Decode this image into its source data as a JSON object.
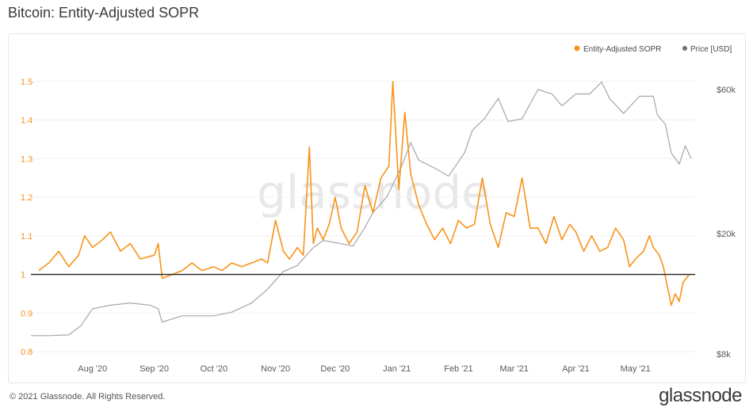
{
  "page": {
    "title": "Bitcoin: Entity-Adjusted SOPR",
    "copyright": "© 2021 Glassnode. All Rights Reserved.",
    "logo": "glassnode",
    "watermark": "glassnode"
  },
  "chart_data": {
    "type": "line",
    "title": "Bitcoin: Entity-Adjusted SOPR",
    "xlabel": "",
    "ylabel": "",
    "x_tick_labels": [
      "Aug '20",
      "Sep '20",
      "Oct '20",
      "Nov '20",
      "Dec '20",
      "Jan '21",
      "Feb '21",
      "Mar '21",
      "Apr '21",
      "May '21"
    ],
    "y_left": {
      "ticks": [
        "0.8",
        "0.9",
        "1",
        "1.1",
        "1.2",
        "1.3",
        "1.4",
        "1.5"
      ],
      "range": [
        0.79,
        1.52
      ]
    },
    "y_right": {
      "ticks": [
        "$8k",
        "$20k",
        "$60k"
      ],
      "scale": "log",
      "range": [
        8000,
        60000
      ]
    },
    "reference_line": {
      "y": 1.0,
      "color": "#222222"
    },
    "legend": {
      "position": "top-right"
    },
    "colors": {
      "sopr": "#f7931a",
      "price": "#a6a6a6"
    },
    "series": [
      {
        "name": "Entity-Adjusted SOPR",
        "axis": "left",
        "points": [
          [
            "2020-07-05",
            1.01
          ],
          [
            "2020-07-10",
            1.03
          ],
          [
            "2020-07-15",
            1.06
          ],
          [
            "2020-07-20",
            1.02
          ],
          [
            "2020-07-25",
            1.05
          ],
          [
            "2020-07-28",
            1.1
          ],
          [
            "2020-08-01",
            1.07
          ],
          [
            "2020-08-06",
            1.09
          ],
          [
            "2020-08-10",
            1.11
          ],
          [
            "2020-08-15",
            1.06
          ],
          [
            "2020-08-20",
            1.08
          ],
          [
            "2020-08-25",
            1.04
          ],
          [
            "2020-09-01",
            1.05
          ],
          [
            "2020-09-03",
            1.08
          ],
          [
            "2020-09-05",
            0.99
          ],
          [
            "2020-09-10",
            1.0
          ],
          [
            "2020-09-15",
            1.01
          ],
          [
            "2020-09-20",
            1.03
          ],
          [
            "2020-09-25",
            1.01
          ],
          [
            "2020-10-01",
            1.02
          ],
          [
            "2020-10-05",
            1.01
          ],
          [
            "2020-10-10",
            1.03
          ],
          [
            "2020-10-15",
            1.02
          ],
          [
            "2020-10-20",
            1.03
          ],
          [
            "2020-10-25",
            1.04
          ],
          [
            "2020-10-28",
            1.03
          ],
          [
            "2020-11-01",
            1.14
          ],
          [
            "2020-11-05",
            1.06
          ],
          [
            "2020-11-08",
            1.04
          ],
          [
            "2020-11-12",
            1.07
          ],
          [
            "2020-11-15",
            1.05
          ],
          [
            "2020-11-18",
            1.33
          ],
          [
            "2020-11-20",
            1.08
          ],
          [
            "2020-11-22",
            1.12
          ],
          [
            "2020-11-25",
            1.09
          ],
          [
            "2020-11-28",
            1.13
          ],
          [
            "2020-12-01",
            1.2
          ],
          [
            "2020-12-04",
            1.12
          ],
          [
            "2020-12-08",
            1.08
          ],
          [
            "2020-12-12",
            1.11
          ],
          [
            "2020-12-16",
            1.23
          ],
          [
            "2020-12-20",
            1.16
          ],
          [
            "2020-12-24",
            1.25
          ],
          [
            "2020-12-28",
            1.28
          ],
          [
            "2020-12-30",
            1.5
          ],
          [
            "2021-01-02",
            1.22
          ],
          [
            "2021-01-05",
            1.42
          ],
          [
            "2021-01-08",
            1.26
          ],
          [
            "2021-01-12",
            1.18
          ],
          [
            "2021-01-16",
            1.13
          ],
          [
            "2021-01-20",
            1.09
          ],
          [
            "2021-01-24",
            1.12
          ],
          [
            "2021-01-28",
            1.08
          ],
          [
            "2021-02-01",
            1.14
          ],
          [
            "2021-02-05",
            1.12
          ],
          [
            "2021-02-09",
            1.13
          ],
          [
            "2021-02-13",
            1.25
          ],
          [
            "2021-02-17",
            1.13
          ],
          [
            "2021-02-21",
            1.07
          ],
          [
            "2021-02-25",
            1.16
          ],
          [
            "2021-03-01",
            1.15
          ],
          [
            "2021-03-05",
            1.25
          ],
          [
            "2021-03-09",
            1.12
          ],
          [
            "2021-03-13",
            1.12
          ],
          [
            "2021-03-17",
            1.08
          ],
          [
            "2021-03-21",
            1.15
          ],
          [
            "2021-03-25",
            1.09
          ],
          [
            "2021-03-29",
            1.13
          ],
          [
            "2021-04-01",
            1.11
          ],
          [
            "2021-04-05",
            1.06
          ],
          [
            "2021-04-09",
            1.1
          ],
          [
            "2021-04-13",
            1.06
          ],
          [
            "2021-04-17",
            1.07
          ],
          [
            "2021-04-21",
            1.12
          ],
          [
            "2021-04-25",
            1.09
          ],
          [
            "2021-04-28",
            1.02
          ],
          [
            "2021-05-01",
            1.04
          ],
          [
            "2021-05-05",
            1.06
          ],
          [
            "2021-05-08",
            1.1
          ],
          [
            "2021-05-10",
            1.07
          ],
          [
            "2021-05-13",
            1.05
          ],
          [
            "2021-05-15",
            1.02
          ],
          [
            "2021-05-17",
            0.97
          ],
          [
            "2021-05-19",
            0.92
          ],
          [
            "2021-05-21",
            0.95
          ],
          [
            "2021-05-23",
            0.93
          ],
          [
            "2021-05-25",
            0.98
          ],
          [
            "2021-05-28",
            1.0
          ]
        ]
      },
      {
        "name": "Price [USD]",
        "axis": "right",
        "points": [
          [
            "2020-07-01",
            9200
          ],
          [
            "2020-07-10",
            9200
          ],
          [
            "2020-07-20",
            9250
          ],
          [
            "2020-07-26",
            9900
          ],
          [
            "2020-08-01",
            11300
          ],
          [
            "2020-08-10",
            11600
          ],
          [
            "2020-08-20",
            11800
          ],
          [
            "2020-08-30",
            11600
          ],
          [
            "2020-09-03",
            11300
          ],
          [
            "2020-09-05",
            10200
          ],
          [
            "2020-09-15",
            10700
          ],
          [
            "2020-09-25",
            10700
          ],
          [
            "2020-10-01",
            10700
          ],
          [
            "2020-10-10",
            11000
          ],
          [
            "2020-10-20",
            11800
          ],
          [
            "2020-10-28",
            13100
          ],
          [
            "2020-11-05",
            15000
          ],
          [
            "2020-11-12",
            15700
          ],
          [
            "2020-11-20",
            18000
          ],
          [
            "2020-11-25",
            19000
          ],
          [
            "2020-12-01",
            18700
          ],
          [
            "2020-12-10",
            18200
          ],
          [
            "2020-12-16",
            21000
          ],
          [
            "2020-12-20",
            23500
          ],
          [
            "2020-12-27",
            26500
          ],
          [
            "2021-01-03",
            33000
          ],
          [
            "2021-01-08",
            40000
          ],
          [
            "2021-01-12",
            35000
          ],
          [
            "2021-01-20",
            33000
          ],
          [
            "2021-01-27",
            31000
          ],
          [
            "2021-02-04",
            37000
          ],
          [
            "2021-02-08",
            44000
          ],
          [
            "2021-02-14",
            48000
          ],
          [
            "2021-02-21",
            56000
          ],
          [
            "2021-02-26",
            47000
          ],
          [
            "2021-03-05",
            48000
          ],
          [
            "2021-03-13",
            60000
          ],
          [
            "2021-03-20",
            58000
          ],
          [
            "2021-03-25",
            53000
          ],
          [
            "2021-04-01",
            58000
          ],
          [
            "2021-04-08",
            58000
          ],
          [
            "2021-04-14",
            63500
          ],
          [
            "2021-04-18",
            56000
          ],
          [
            "2021-04-25",
            50000
          ],
          [
            "2021-05-03",
            57000
          ],
          [
            "2021-05-10",
            57000
          ],
          [
            "2021-05-12",
            49500
          ],
          [
            "2021-05-16",
            46000
          ],
          [
            "2021-05-19",
            37000
          ],
          [
            "2021-05-23",
            34000
          ],
          [
            "2021-05-26",
            39000
          ],
          [
            "2021-05-29",
            35500
          ]
        ]
      }
    ]
  }
}
